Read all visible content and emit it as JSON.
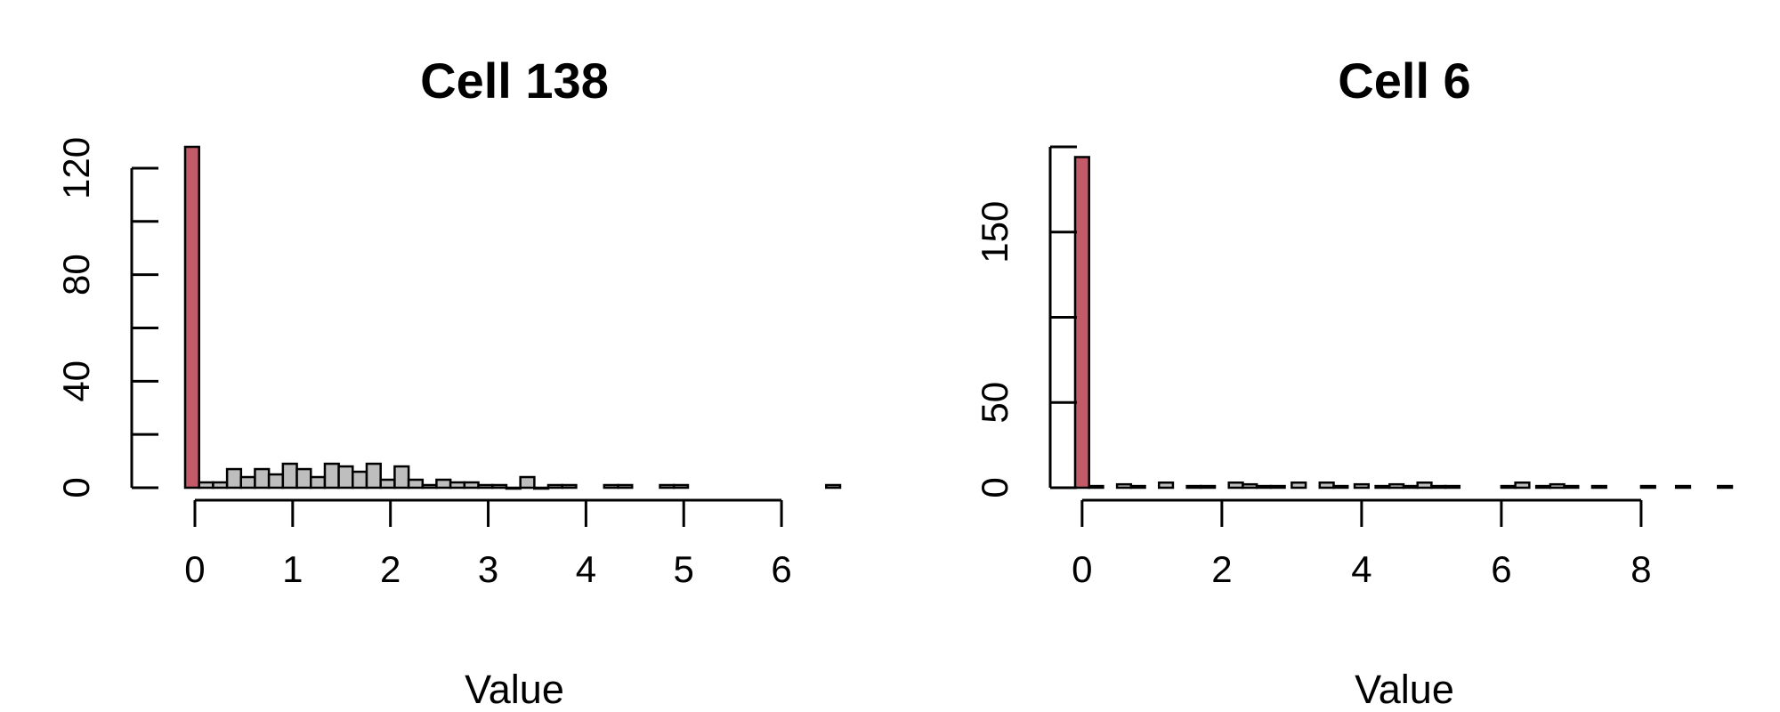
{
  "chart_data": [
    {
      "type": "bar",
      "title": "Cell 138",
      "xlabel": "Value",
      "ylabel": "",
      "xlim": [
        -0.1,
        6.6
      ],
      "ylim": [
        0,
        128
      ],
      "x_ticks": [
        0,
        1,
        2,
        3,
        4,
        5,
        6
      ],
      "x_tick_labels": [
        "0",
        "1",
        "2",
        "3",
        "4",
        "5",
        "6"
      ],
      "y_ticks": [
        0,
        20,
        40,
        60,
        80,
        100,
        120
      ],
      "y_tick_labels": [
        "0",
        "",
        "40",
        "",
        "80",
        "",
        "120"
      ],
      "bin_width": 0.143,
      "bins": [
        {
          "x0": -0.1,
          "value": 128,
          "highlight": true
        },
        {
          "x0": 0.043,
          "value": 2
        },
        {
          "x0": 0.186,
          "value": 2
        },
        {
          "x0": 0.329,
          "value": 7
        },
        {
          "x0": 0.471,
          "value": 4
        },
        {
          "x0": 0.614,
          "value": 7
        },
        {
          "x0": 0.757,
          "value": 5
        },
        {
          "x0": 0.9,
          "value": 9
        },
        {
          "x0": 1.043,
          "value": 7
        },
        {
          "x0": 1.186,
          "value": 4
        },
        {
          "x0": 1.329,
          "value": 9
        },
        {
          "x0": 1.471,
          "value": 8
        },
        {
          "x0": 1.614,
          "value": 6
        },
        {
          "x0": 1.757,
          "value": 9
        },
        {
          "x0": 1.9,
          "value": 3
        },
        {
          "x0": 2.043,
          "value": 8
        },
        {
          "x0": 2.186,
          "value": 3
        },
        {
          "x0": 2.329,
          "value": 1
        },
        {
          "x0": 2.471,
          "value": 3
        },
        {
          "x0": 2.614,
          "value": 2
        },
        {
          "x0": 2.757,
          "value": 2
        },
        {
          "x0": 2.9,
          "value": 1
        },
        {
          "x0": 3.043,
          "value": 1
        },
        {
          "x0": 3.186,
          "value": 0
        },
        {
          "x0": 3.329,
          "value": 4
        },
        {
          "x0": 3.471,
          "value": 0
        },
        {
          "x0": 3.614,
          "value": 1
        },
        {
          "x0": 3.757,
          "value": 1
        },
        {
          "x0": 4.186,
          "value": 1
        },
        {
          "x0": 4.329,
          "value": 1
        },
        {
          "x0": 4.757,
          "value": 1
        },
        {
          "x0": 4.9,
          "value": 1
        },
        {
          "x0": 6.457,
          "value": 1
        }
      ],
      "colors": {
        "highlight": "#c25b67",
        "bar": "#bebebe"
      }
    },
    {
      "type": "bar",
      "title": "Cell 6",
      "xlabel": "Value",
      "ylabel": "",
      "xlim": [
        -0.1,
        9.3
      ],
      "ylim": [
        0,
        200
      ],
      "x_ticks": [
        0,
        2,
        4,
        6,
        8
      ],
      "x_tick_labels": [
        "0",
        "2",
        "4",
        "6",
        "8"
      ],
      "y_ticks": [
        0,
        50,
        100,
        150,
        200
      ],
      "y_tick_labels": [
        "0",
        "50",
        "",
        "150",
        ""
      ],
      "bin_width": 0.2,
      "bins": [
        {
          "x0": -0.1,
          "value": 194,
          "highlight": true
        },
        {
          "x0": 0.1,
          "value": 1
        },
        {
          "x0": 0.5,
          "value": 2
        },
        {
          "x0": 0.7,
          "value": 1
        },
        {
          "x0": 1.1,
          "value": 3
        },
        {
          "x0": 1.5,
          "value": 1
        },
        {
          "x0": 1.7,
          "value": 1
        },
        {
          "x0": 2.1,
          "value": 3
        },
        {
          "x0": 2.3,
          "value": 2
        },
        {
          "x0": 2.5,
          "value": 1
        },
        {
          "x0": 2.7,
          "value": 1
        },
        {
          "x0": 3.0,
          "value": 3
        },
        {
          "x0": 3.4,
          "value": 3
        },
        {
          "x0": 3.6,
          "value": 1
        },
        {
          "x0": 3.9,
          "value": 2
        },
        {
          "x0": 4.2,
          "value": 1
        },
        {
          "x0": 4.4,
          "value": 2
        },
        {
          "x0": 4.6,
          "value": 1
        },
        {
          "x0": 4.8,
          "value": 3
        },
        {
          "x0": 5.0,
          "value": 1
        },
        {
          "x0": 5.2,
          "value": 1
        },
        {
          "x0": 6.0,
          "value": 1
        },
        {
          "x0": 6.2,
          "value": 3
        },
        {
          "x0": 6.5,
          "value": 1
        },
        {
          "x0": 6.7,
          "value": 2
        },
        {
          "x0": 6.9,
          "value": 1
        },
        {
          "x0": 7.3,
          "value": 1
        },
        {
          "x0": 8.0,
          "value": 1
        },
        {
          "x0": 8.5,
          "value": 1
        },
        {
          "x0": 9.1,
          "value": 1
        }
      ],
      "colors": {
        "highlight": "#c25b67",
        "bar": "#bebebe"
      }
    }
  ]
}
